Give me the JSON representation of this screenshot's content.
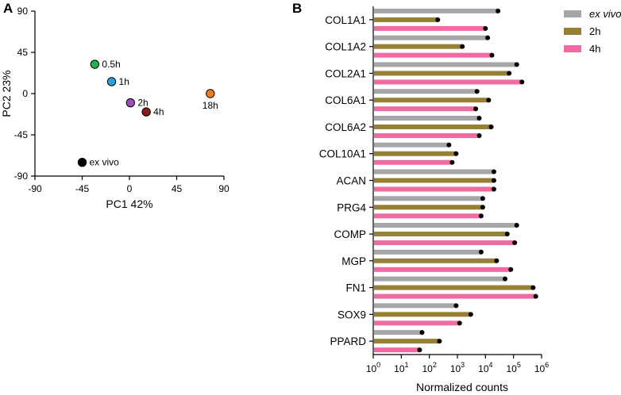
{
  "panels": {
    "a_letter": "A",
    "b_letter": "B"
  },
  "chart_data": [
    {
      "type": "scatter",
      "xlabel": "PC1 42%",
      "ylabel": "PC2 23%",
      "xlim": [
        -90,
        90
      ],
      "ylim": [
        -90,
        90
      ],
      "xticks": [
        -90,
        -45,
        0,
        45,
        90
      ],
      "yticks": [
        90,
        45,
        0,
        -45,
        -90
      ],
      "points": [
        {
          "label": "0.5h",
          "x": -33,
          "y": 32,
          "color": "#22b24c",
          "label_side": "right"
        },
        {
          "label": "1h",
          "x": -17,
          "y": 13,
          "color": "#2ea0dc",
          "label_side": "right"
        },
        {
          "label": "2h",
          "x": 1,
          "y": -10,
          "color": "#9b4fb8",
          "label_side": "right"
        },
        {
          "label": "4h",
          "x": 16,
          "y": -20,
          "color": "#8b1a1a",
          "label_side": "right"
        },
        {
          "label": "18h",
          "x": 77,
          "y": 0,
          "color": "#ef7d22",
          "label_side": "below"
        },
        {
          "label": "ex vivo",
          "x": -45,
          "y": -75,
          "color": "#000000",
          "label_side": "right"
        }
      ]
    },
    {
      "type": "bar",
      "orientation": "horizontal",
      "xscale": "log",
      "xlabel": "Normalized counts",
      "xticks": [
        {
          "value": 1,
          "base": "10",
          "exp": "0"
        },
        {
          "value": 10,
          "base": "10",
          "exp": "1"
        },
        {
          "value": 100,
          "base": "10",
          "exp": "2"
        },
        {
          "value": 1000,
          "base": "10",
          "exp": "3"
        },
        {
          "value": 10000,
          "base": "10",
          "exp": "4"
        },
        {
          "value": 100000,
          "base": "10",
          "exp": "5"
        },
        {
          "value": 1000000,
          "base": "10",
          "exp": "6"
        }
      ],
      "xlim": [
        1,
        1000000
      ],
      "categories": [
        "COL1A1",
        "COL1A2",
        "COL2A1",
        "COL6A1",
        "COL6A2",
        "COL10A1",
        "ACAN",
        "PRG4",
        "COMP",
        "MGP",
        "FN1",
        "SOX9",
        "PPARD"
      ],
      "series": [
        {
          "name": "ex vivo",
          "italic": true,
          "color": "#a6a6aa",
          "values": [
            28000,
            12000,
            130000,
            5000,
            6000,
            500,
            20000,
            8000,
            130000,
            7000,
            50000,
            900,
            55
          ]
        },
        {
          "name": "2h",
          "italic": false,
          "color": "#968035",
          "values": [
            200,
            1500,
            70000,
            13000,
            16000,
            900,
            20000,
            8000,
            60000,
            25000,
            500000,
            3000,
            230
          ]
        },
        {
          "name": "4h",
          "italic": false,
          "color": "#f06ba2",
          "values": [
            10000,
            17000,
            200000,
            4500,
            6000,
            650,
            20000,
            7000,
            110000,
            80000,
            620000,
            1200,
            45
          ]
        }
      ]
    }
  ]
}
